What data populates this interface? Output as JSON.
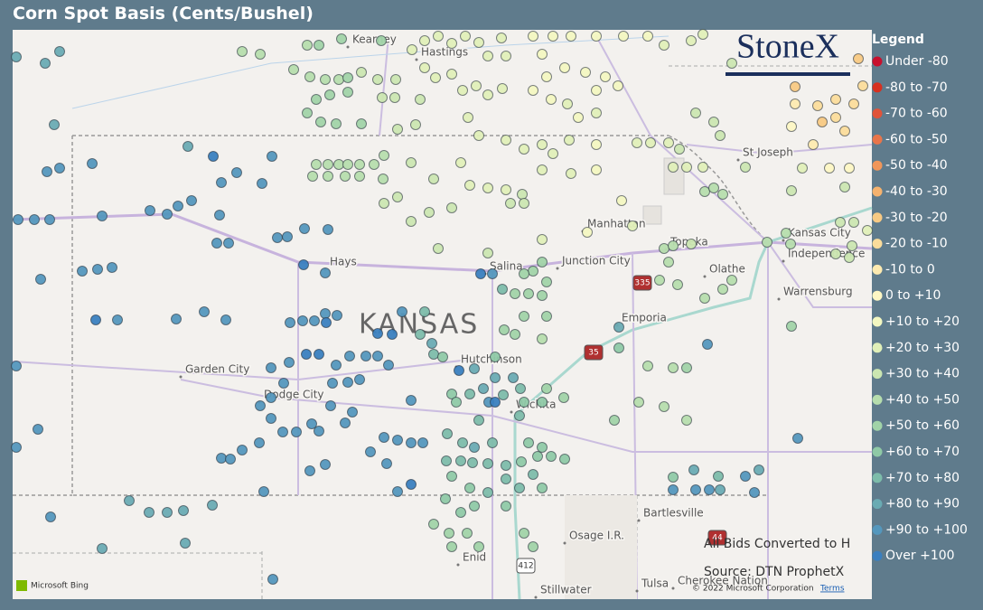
{
  "header": {
    "title": "Corn Spot Basis (Cents/Bushel)"
  },
  "branding": {
    "logo": "StoneX"
  },
  "map": {
    "state": "KANSAS",
    "places": [
      "Kearney",
      "Hastings",
      "St Joseph",
      "Manhattan",
      "Kansas City",
      "Independence",
      "Topeka",
      "Olathe",
      "Hays",
      "Salina",
      "Junction City",
      "Warrensburg",
      "Emporia",
      "Garden City",
      "Dodge City",
      "Hutchinson",
      "Wichita",
      "Bartlesville",
      "Osage I.R.",
      "Enid",
      "Stillwater",
      "Tulsa",
      "Cherokee Nation",
      "335",
      "35",
      "412",
      "44"
    ]
  },
  "legend": {
    "title": "Legend",
    "items": [
      {
        "label": "Under -80",
        "color": "#c8102e"
      },
      {
        "label": "-80 to -70",
        "color": "#d7301f"
      },
      {
        "label": "-70 to -60",
        "color": "#e0533a"
      },
      {
        "label": "-60 to -50",
        "color": "#e8754a"
      },
      {
        "label": "-50 to -40",
        "color": "#f0965a"
      },
      {
        "label": "-40 to -30",
        "color": "#f5b26e"
      },
      {
        "label": "-30 to -20",
        "color": "#f8c983"
      },
      {
        "label": "-20 to -10",
        "color": "#fbdc9b"
      },
      {
        "label": "-10 to 0",
        "color": "#fdeab0"
      },
      {
        "label": "0 to +10",
        "color": "#fdf7c4"
      },
      {
        "label": "+10 to +20",
        "color": "#f3f7c1"
      },
      {
        "label": "+20 to +30",
        "color": "#e0efb8"
      },
      {
        "label": "+30 to +40",
        "color": "#cbe6b1"
      },
      {
        "label": "+40 to +50",
        "color": "#b6ddad"
      },
      {
        "label": "+50 to +60",
        "color": "#a1d3a8"
      },
      {
        "label": "+60 to +70",
        "color": "#8fc9a6"
      },
      {
        "label": "+70 to +80",
        "color": "#7dbcaa"
      },
      {
        "label": "+80 to +90",
        "color": "#6aabb3"
      },
      {
        "label": "+90 to +100",
        "color": "#5497bd"
      },
      {
        "label": "Over +100",
        "color": "#3a7fbf"
      }
    ]
  },
  "notes": {
    "conversion": "All Bids Converted to H",
    "source": "Source: DTN ProphetX"
  },
  "attribution": {
    "provider": "Microsoft Bing",
    "copyright": "© 2022 Microsoft Corporation",
    "terms": "Terms"
  }
}
